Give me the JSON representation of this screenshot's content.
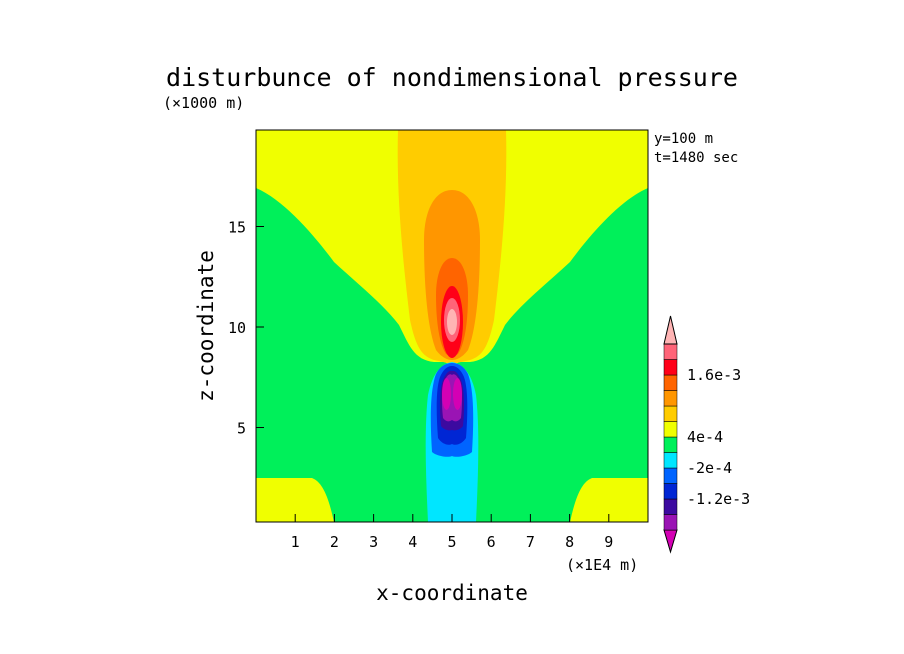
{
  "chart_data": {
    "type": "heatmap",
    "title": "disturbunce of nondimensional pressure",
    "xlabel": "x-coordinate",
    "ylabel": "z-coordinate",
    "x_unit": "(×1E4 m)",
    "y_unit": "(×1000 m)",
    "annotations": [
      "y=100 m",
      "t=1480 sec"
    ],
    "xlim": [
      0,
      10
    ],
    "ylim": [
      0.3,
      19.8
    ],
    "x_ticks": [
      "1",
      "2",
      "3",
      "4",
      "5",
      "6",
      "7",
      "8",
      "9"
    ],
    "y_ticks": [
      "5",
      "10",
      "15"
    ],
    "colorbar": {
      "colors": [
        "#d400b4",
        "#9a14b4",
        "#3c0aa0",
        "#0026d4",
        "#0064ff",
        "#00e6ff",
        "#00f05a",
        "#f0ff00",
        "#ffcc00",
        "#ff9600",
        "#ff6400",
        "#ff0018",
        "#ff6478",
        "#ffb4b4"
      ],
      "labels": [
        "-1.2e-3",
        "-2e-4",
        "4e-4",
        "1.6e-3"
      ]
    },
    "regions": [
      {
        "name": "upper-positive-core",
        "level": "1.6e-3",
        "center": [
          5.0,
          10.7
        ]
      },
      {
        "name": "lower-negative-core",
        "level": "-1.2e-3",
        "center": [
          5.0,
          6.8
        ]
      },
      {
        "name": "background",
        "level": "-2e-4 to 4e-4"
      }
    ]
  }
}
